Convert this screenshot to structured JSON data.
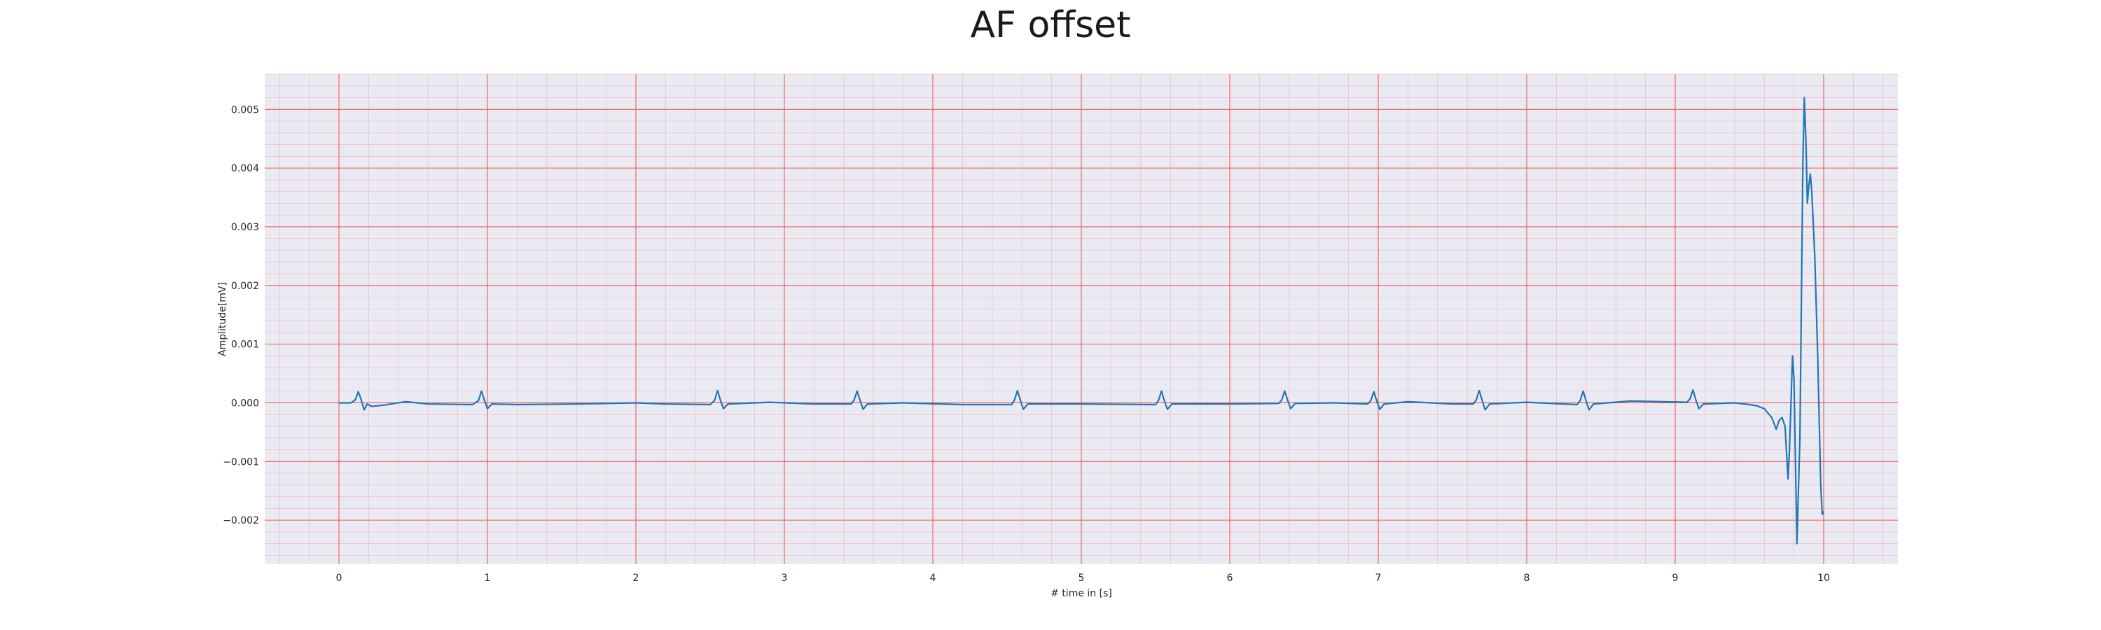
{
  "chart_data": {
    "type": "line",
    "title": "AF offset",
    "xlabel": "# time in [s]",
    "ylabel": "Amplitude[mV]",
    "xlim": [
      -0.5,
      10.5
    ],
    "ylim": [
      -0.00275,
      0.0056
    ],
    "x_ticks": [
      0,
      1,
      2,
      3,
      4,
      5,
      6,
      7,
      8,
      9,
      10
    ],
    "x_tick_labels": [
      "0",
      "1",
      "2",
      "3",
      "4",
      "5",
      "6",
      "7",
      "8",
      "9",
      "10"
    ],
    "y_ticks": [
      -0.002,
      -0.001,
      0.0,
      0.001,
      0.002,
      0.003,
      0.004,
      0.005
    ],
    "y_tick_labels": [
      "−0.002",
      "−0.001",
      "0.000",
      "0.001",
      "0.002",
      "0.003",
      "0.004",
      "0.005"
    ],
    "grid": true,
    "colors": {
      "line": "#1f77b4",
      "plot_background": "#eaeaf2",
      "major_grid": "#f25a5a",
      "minor_grid": "#f5b8c4"
    },
    "series": [
      {
        "values": [
          [
            0.0,
            0.0
          ],
          [
            0.08,
            0.0
          ],
          [
            0.11,
            5e-05
          ],
          [
            0.13,
            0.00019
          ],
          [
            0.15,
            5e-05
          ],
          [
            0.17,
            -0.00012
          ],
          [
            0.19,
            -2e-05
          ],
          [
            0.22,
            -6e-05
          ],
          [
            0.3,
            -4e-05
          ],
          [
            0.45,
            2e-05
          ],
          [
            0.6,
            -2e-05
          ],
          [
            0.9,
            -3e-05
          ],
          [
            0.94,
            4e-05
          ],
          [
            0.96,
            0.0002
          ],
          [
            0.98,
            4e-05
          ],
          [
            1.0,
            -0.0001
          ],
          [
            1.03,
            -2e-05
          ],
          [
            1.2,
            -3e-05
          ],
          [
            1.6,
            -2e-05
          ],
          [
            2.0,
            0.0
          ],
          [
            2.2,
            -2e-05
          ],
          [
            2.5,
            -3e-05
          ],
          [
            2.53,
            4e-05
          ],
          [
            2.55,
            0.00021
          ],
          [
            2.57,
            4e-05
          ],
          [
            2.59,
            -0.0001
          ],
          [
            2.62,
            -2e-05
          ],
          [
            2.9,
            1e-05
          ],
          [
            3.2,
            -2e-05
          ],
          [
            3.45,
            -2e-05
          ],
          [
            3.47,
            5e-05
          ],
          [
            3.49,
            0.0002
          ],
          [
            3.51,
            4e-05
          ],
          [
            3.53,
            -0.00011
          ],
          [
            3.56,
            -2e-05
          ],
          [
            3.8,
            0.0
          ],
          [
            4.2,
            -3e-05
          ],
          [
            4.53,
            -3e-05
          ],
          [
            4.55,
            5e-05
          ],
          [
            4.57,
            0.00021
          ],
          [
            4.59,
            4e-05
          ],
          [
            4.61,
            -0.00011
          ],
          [
            4.64,
            -2e-05
          ],
          [
            5.0,
            -2e-05
          ],
          [
            5.5,
            -3e-05
          ],
          [
            5.52,
            4e-05
          ],
          [
            5.54,
            0.0002
          ],
          [
            5.56,
            3e-05
          ],
          [
            5.58,
            -0.00011
          ],
          [
            5.61,
            -2e-05
          ],
          [
            6.0,
            -2e-05
          ],
          [
            6.33,
            -1e-05
          ],
          [
            6.35,
            5e-05
          ],
          [
            6.37,
            0.0002
          ],
          [
            6.39,
            4e-05
          ],
          [
            6.41,
            -0.0001
          ],
          [
            6.44,
            -1e-05
          ],
          [
            6.7,
            0.0
          ],
          [
            6.93,
            -2e-05
          ],
          [
            6.95,
            4e-05
          ],
          [
            6.97,
            0.00019
          ],
          [
            6.99,
            3e-05
          ],
          [
            7.01,
            -0.00011
          ],
          [
            7.04,
            -2e-05
          ],
          [
            7.2,
            2e-05
          ],
          [
            7.5,
            -2e-05
          ],
          [
            7.64,
            -2e-05
          ],
          [
            7.66,
            5e-05
          ],
          [
            7.68,
            0.00021
          ],
          [
            7.7,
            4e-05
          ],
          [
            7.72,
            -0.00012
          ],
          [
            7.75,
            -2e-05
          ],
          [
            8.0,
            1e-05
          ],
          [
            8.34,
            -3e-05
          ],
          [
            8.36,
            4e-05
          ],
          [
            8.38,
            0.0002
          ],
          [
            8.4,
            3e-05
          ],
          [
            8.42,
            -0.00012
          ],
          [
            8.45,
            -2e-05
          ],
          [
            8.7,
            3e-05
          ],
          [
            9.08,
            1e-05
          ],
          [
            9.1,
            7e-05
          ],
          [
            9.12,
            0.00022
          ],
          [
            9.14,
            4e-05
          ],
          [
            9.16,
            -0.0001
          ],
          [
            9.19,
            -2e-05
          ],
          [
            9.4,
            0.0
          ],
          [
            9.5,
            -3e-05
          ],
          [
            9.55,
            -5e-05
          ],
          [
            9.6,
            -0.0001
          ],
          [
            9.65,
            -0.00025
          ],
          [
            9.68,
            -0.00045
          ],
          [
            9.7,
            -0.0003
          ],
          [
            9.72,
            -0.00025
          ],
          [
            9.74,
            -0.0004
          ],
          [
            9.76,
            -0.0013
          ],
          [
            9.77,
            -0.0008
          ],
          [
            9.79,
            0.0008
          ],
          [
            9.8,
            0.0004
          ],
          [
            9.82,
            -0.0024
          ],
          [
            9.84,
            -0.0006
          ],
          [
            9.86,
            0.0041
          ],
          [
            9.87,
            0.0052
          ],
          [
            9.88,
            0.0045
          ],
          [
            9.89,
            0.0034
          ],
          [
            9.9,
            0.0037
          ],
          [
            9.91,
            0.0039
          ],
          [
            9.92,
            0.0036
          ],
          [
            9.94,
            0.0025
          ],
          [
            9.96,
            0.0008
          ],
          [
            9.98,
            -0.0014
          ],
          [
            9.99,
            -0.0019
          ],
          [
            10.0,
            -0.00185
          ]
        ]
      }
    ]
  }
}
